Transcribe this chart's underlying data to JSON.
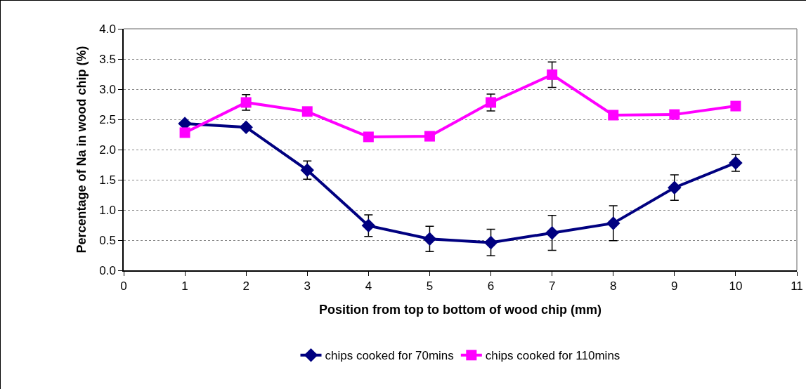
{
  "chart_data": {
    "type": "line",
    "xlabel": "Position from top to bottom of wood chip (mm)",
    "ylabel": "Percentage of Na in wood chip (%)",
    "x": [
      1,
      2,
      3,
      4,
      5,
      6,
      7,
      8,
      9,
      10
    ],
    "series": [
      {
        "name": "chips cooked for 70mins",
        "color": "#000080",
        "marker": "diamond",
        "values": [
          2.43,
          2.37,
          1.66,
          0.74,
          0.52,
          0.46,
          0.62,
          0.78,
          1.37,
          1.78
        ],
        "errors": [
          null,
          null,
          0.15,
          0.18,
          0.21,
          0.22,
          0.29,
          0.29,
          0.21,
          0.14
        ]
      },
      {
        "name": "chips cooked for 110mins",
        "color": "#ff00ff",
        "marker": "square",
        "values": [
          2.28,
          2.78,
          2.63,
          2.21,
          2.22,
          2.78,
          3.24,
          2.57,
          2.58,
          2.72
        ],
        "errors": [
          null,
          0.13,
          null,
          null,
          null,
          0.14,
          0.21,
          null,
          null,
          null
        ]
      }
    ],
    "xlim": [
      0,
      11
    ],
    "xticks": [
      0,
      1,
      2,
      3,
      4,
      5,
      6,
      7,
      8,
      9,
      10,
      11
    ],
    "ylim": [
      0,
      4
    ],
    "yticks": [
      {
        "value": 0,
        "label": "0.0"
      },
      {
        "value": 0.5,
        "label": "0.5"
      },
      {
        "value": 1,
        "label": "1.0"
      },
      {
        "value": 1.5,
        "label": "1.5"
      },
      {
        "value": 2,
        "label": "2.0"
      },
      {
        "value": 2.5,
        "label": "2.5"
      },
      {
        "value": 3,
        "label": "3.0"
      },
      {
        "value": 3.5,
        "label": "3.5"
      },
      {
        "value": 4,
        "label": "4.0"
      }
    ],
    "grid": "y",
    "legend": "bottom",
    "line_style": "solid"
  }
}
